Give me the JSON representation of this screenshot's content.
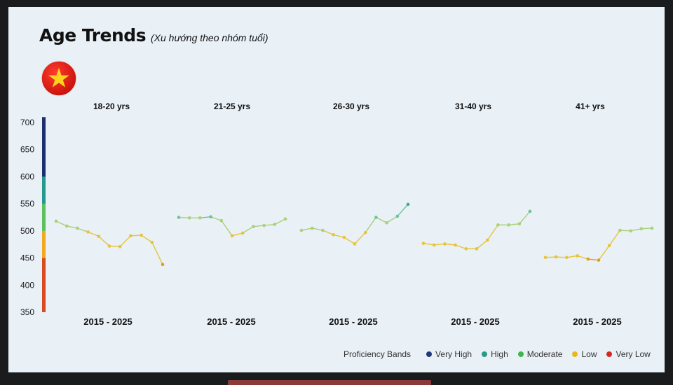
{
  "header": {
    "title": "Age Trends",
    "subtitle": "(Xu hướng theo nhóm tuổi)",
    "flag_icon": "vietnam-flag-icon"
  },
  "legend": {
    "title": "Proficiency Bands",
    "items": [
      {
        "label": "Very High",
        "color": "#1f3a7a"
      },
      {
        "label": "High",
        "color": "#2a9a8a"
      },
      {
        "label": "Moderate",
        "color": "#3cb84a"
      },
      {
        "label": "Low",
        "color": "#e8b820"
      },
      {
        "label": "Very Low",
        "color": "#d42a1e"
      }
    ]
  },
  "chart_data": {
    "type": "line",
    "y_ticks": [
      700,
      650,
      600,
      550,
      500,
      450,
      400,
      350
    ],
    "ylim": [
      350,
      710
    ],
    "bands": [
      {
        "from": 350,
        "to": 450,
        "color": "#d94a1e"
      },
      {
        "from": 450,
        "to": 500,
        "color": "#f2a922"
      },
      {
        "from": 500,
        "to": 550,
        "color": "#5cc05e"
      },
      {
        "from": 550,
        "to": 600,
        "color": "#249a8e"
      },
      {
        "from": 600,
        "to": 710,
        "color": "#1c2f6e"
      }
    ],
    "panels": [
      {
        "label": "18-20 yrs",
        "xlabel": "2015 - 2025",
        "values": [
          518,
          509,
          505,
          498,
          490,
          472,
          471,
          491,
          492,
          479,
          438
        ]
      },
      {
        "label": "21-25 yrs",
        "xlabel": "2015 - 2025",
        "values": [
          525,
          524,
          524,
          526,
          519,
          491,
          496,
          508,
          510,
          512,
          522
        ]
      },
      {
        "label": "26-30 yrs",
        "xlabel": "2015 - 2025",
        "values": [
          501,
          505,
          501,
          493,
          488,
          476,
          497,
          525,
          515,
          527,
          549
        ]
      },
      {
        "label": "31-40 yrs",
        "xlabel": "2015 - 2025",
        "values": [
          477,
          474,
          476,
          474,
          467,
          467,
          483,
          511,
          511,
          513,
          536
        ]
      },
      {
        "label": "41+ yrs",
        "xlabel": "2015 - 2025",
        "values": [
          451,
          452,
          451,
          454,
          448,
          446,
          473,
          501,
          500,
          504,
          505
        ]
      }
    ]
  }
}
